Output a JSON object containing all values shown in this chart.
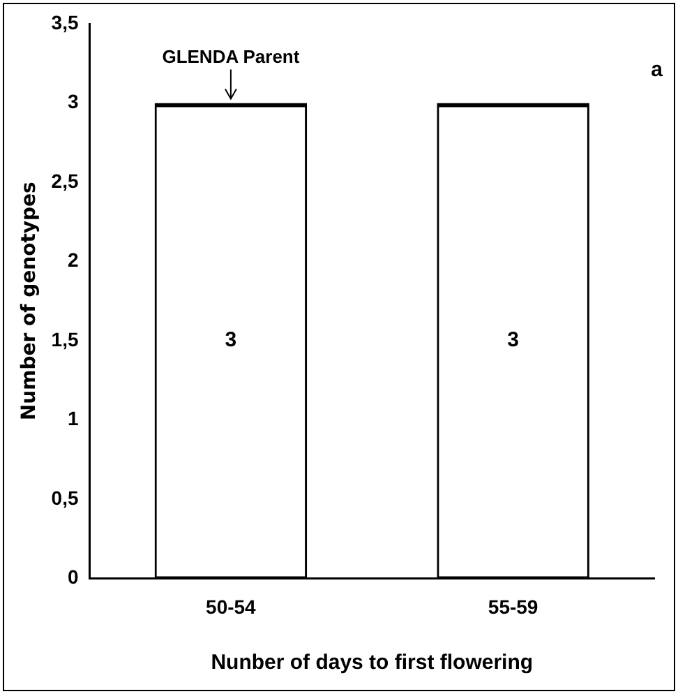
{
  "chart_data": {
    "type": "bar",
    "xlabel": "Nunber of days to first flowering",
    "ylabel": "Number of genotypes",
    "categories": [
      "50-54",
      "55-59"
    ],
    "values": [
      3,
      3
    ],
    "color": "#000000",
    "ylim": [
      0,
      3.5
    ],
    "yticks": [
      0,
      {
        "value": 0.5,
        "label": "0,5"
      },
      1,
      {
        "value": 1.5,
        "label": "1,5"
      },
      2,
      {
        "value": 2.5,
        "label": "2,5"
      },
      3,
      {
        "value": 3.5,
        "label": "3,5"
      }
    ],
    "grid": false,
    "legend": false,
    "data_labels": true,
    "annotations": [
      {
        "text": "GLENDA Parent",
        "x": "50-54",
        "y": 3
      },
      "a"
    ]
  }
}
